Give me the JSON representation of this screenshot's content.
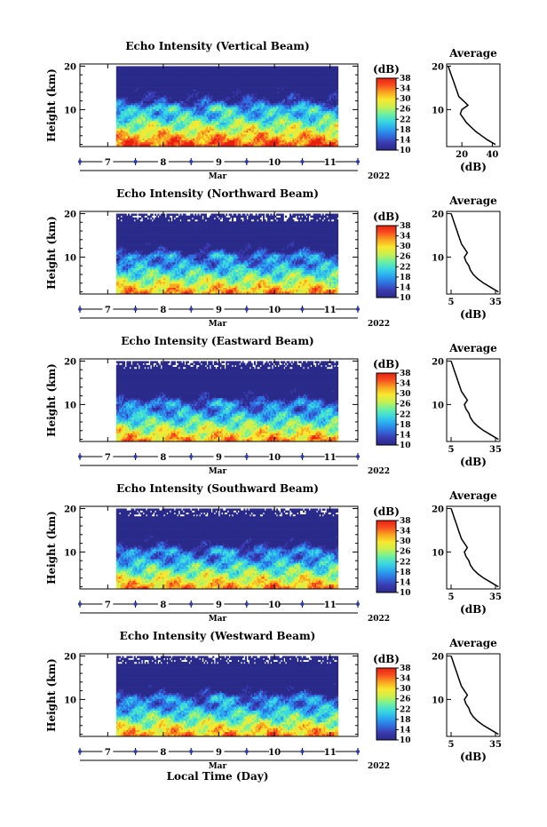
{
  "chart_data": {
    "type": "heatmap",
    "xlabel": "Local Time (Day)",
    "month_label": "Mar",
    "year_label": "2022",
    "x_ticks": [
      "7",
      "8",
      "9",
      "10",
      "11"
    ],
    "x_range_days": [
      6.5,
      11.5
    ],
    "data_start_day": 7.15,
    "data_end_day": 11.15,
    "ylabel": "Height (km)",
    "y_ticks": [
      "10",
      "20"
    ],
    "ylim_km": [
      1.5,
      20.5
    ],
    "colorbar": {
      "label": "(dB)",
      "ticks": [
        "10",
        "14",
        "18",
        "22",
        "26",
        "30",
        "34",
        "38"
      ],
      "range": [
        10,
        38
      ],
      "colors": [
        "#2a2a8a",
        "#3a3ab0",
        "#2f6fe0",
        "#2aa8f0",
        "#3ad8e0",
        "#6cf0a0",
        "#c8f050",
        "#f8e830",
        "#f8a820",
        "#f85020",
        "#e82010"
      ]
    },
    "average_title": "Average",
    "average_xlabel": "(dB)",
    "panels": [
      {
        "title": "Echo Intensity (Vertical Beam)",
        "avg_ticks": [
          "20",
          "40"
        ],
        "avg_xlim": [
          10,
          45
        ],
        "avg_height_km": [
          2,
          3,
          4,
          5,
          6,
          7,
          8,
          9,
          10,
          11,
          12,
          13,
          14,
          15,
          16,
          17,
          18,
          19,
          20
        ],
        "avg_db": [
          42,
          37,
          33,
          29,
          26,
          23,
          21,
          19,
          20,
          24,
          21,
          18,
          17,
          16,
          15,
          14,
          13,
          12,
          11
        ]
      },
      {
        "title": "Echo Intensity (Northward Beam)",
        "avg_ticks": [
          "5",
          "35"
        ],
        "avg_xlim": [
          2,
          38
        ],
        "avg_height_km": [
          2,
          3,
          4,
          5,
          6,
          7,
          8,
          9,
          10,
          11,
          12,
          13,
          14,
          15,
          16,
          17,
          18,
          19,
          20
        ],
        "avg_db": [
          37,
          32,
          27,
          23,
          20,
          18,
          17,
          15,
          14,
          16,
          14,
          12,
          11,
          10,
          9,
          8,
          7,
          6,
          5
        ]
      },
      {
        "title": "Echo Intensity (Eastward Beam)",
        "avg_ticks": [
          "5",
          "35"
        ],
        "avg_xlim": [
          2,
          38
        ],
        "avg_height_km": [
          2,
          3,
          4,
          5,
          6,
          7,
          8,
          9,
          10,
          11,
          12,
          13,
          14,
          15,
          16,
          17,
          18,
          19,
          20
        ],
        "avg_db": [
          37,
          32,
          27,
          23,
          20,
          18,
          17,
          15,
          14,
          16,
          14,
          12,
          11,
          10,
          9,
          8,
          7,
          6,
          5
        ]
      },
      {
        "title": "Echo Intensity (Southward Beam)",
        "avg_ticks": [
          "5",
          "35"
        ],
        "avg_xlim": [
          2,
          38
        ],
        "avg_height_km": [
          2,
          3,
          4,
          5,
          6,
          7,
          8,
          9,
          10,
          11,
          12,
          13,
          14,
          15,
          16,
          17,
          18,
          19,
          20
        ],
        "avg_db": [
          37,
          32,
          27,
          23,
          20,
          18,
          17,
          15,
          14,
          16,
          14,
          12,
          11,
          10,
          9,
          8,
          7,
          6,
          5
        ]
      },
      {
        "title": "Echo Intensity (Westward Beam)",
        "avg_ticks": [
          "5",
          "35"
        ],
        "avg_xlim": [
          2,
          38
        ],
        "avg_height_km": [
          2,
          3,
          4,
          5,
          6,
          7,
          8,
          9,
          10,
          11,
          12,
          13,
          14,
          15,
          16,
          17,
          18,
          19,
          20
        ],
        "avg_db": [
          37,
          32,
          27,
          23,
          20,
          18,
          17,
          15,
          14,
          16,
          14,
          12,
          11,
          10,
          9,
          8,
          7,
          6,
          5
        ]
      }
    ]
  }
}
